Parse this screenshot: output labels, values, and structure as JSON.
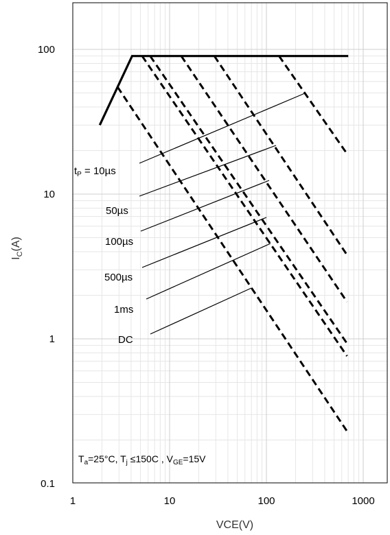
{
  "chart_data": {
    "type": "line",
    "title": "",
    "xlabel": "VCE(V)",
    "ylabel_main": "I",
    "ylabel_sub": "C",
    "ylabel_rest": "(A)",
    "x_scale": "log",
    "y_scale": "log",
    "xlim": [
      1,
      1000
    ],
    "ylim": [
      0.1,
      100
    ],
    "x_ticks": [
      {
        "value": 1,
        "label": "1"
      },
      {
        "value": 10,
        "label": "10"
      },
      {
        "value": 100,
        "label": "100"
      },
      {
        "value": 1000,
        "label": "1000"
      }
    ],
    "y_ticks": [
      {
        "value": 100,
        "label": "100"
      },
      {
        "value": 10,
        "label": "10"
      },
      {
        "value": 1,
        "label": "1"
      },
      {
        "value": 0.1,
        "label": "0.1"
      }
    ],
    "grid": true,
    "boundary": {
      "style": "solid",
      "points": [
        [
          1.9,
          30
        ],
        [
          4.1,
          90
        ],
        [
          700,
          90
        ]
      ]
    },
    "series": [
      {
        "label_main": "t",
        "label_sub": "P",
        "label_rest": " = 10µs",
        "style": "dashed",
        "points": [
          [
            135,
            90
          ],
          [
            680,
            19
          ]
        ]
      },
      {
        "label_main": "",
        "label_sub": "",
        "label_rest": "50µs",
        "style": "dashed",
        "points": [
          [
            29,
            90
          ],
          [
            680,
            3.8
          ]
        ]
      },
      {
        "label_main": "",
        "label_sub": "",
        "label_rest": "100µs",
        "style": "dashed",
        "points": [
          [
            13.2,
            90
          ],
          [
            680,
            1.8
          ]
        ]
      },
      {
        "label_main": "",
        "label_sub": "",
        "label_rest": "500µs",
        "style": "dashed",
        "points": [
          [
            6.3,
            90
          ],
          [
            680,
            0.93
          ]
        ]
      },
      {
        "label_main": "",
        "label_sub": "",
        "label_rest": "1ms",
        "style": "dashed",
        "points": [
          [
            5.2,
            90
          ],
          [
            680,
            0.76
          ]
        ]
      },
      {
        "label_main": "",
        "label_sub": "",
        "label_rest": "DC",
        "style": "dashed",
        "points": [
          [
            2.9,
            55
          ],
          [
            680,
            0.23
          ]
        ]
      }
    ],
    "conditions": {
      "t1": "T",
      "t1_sub": "a",
      "t1_rest": "=25°C, T",
      "t2_sub": "j",
      "t2_rest": " ≤150C , V",
      "t3_sub": "GE",
      "t3_rest": "=15V"
    }
  }
}
